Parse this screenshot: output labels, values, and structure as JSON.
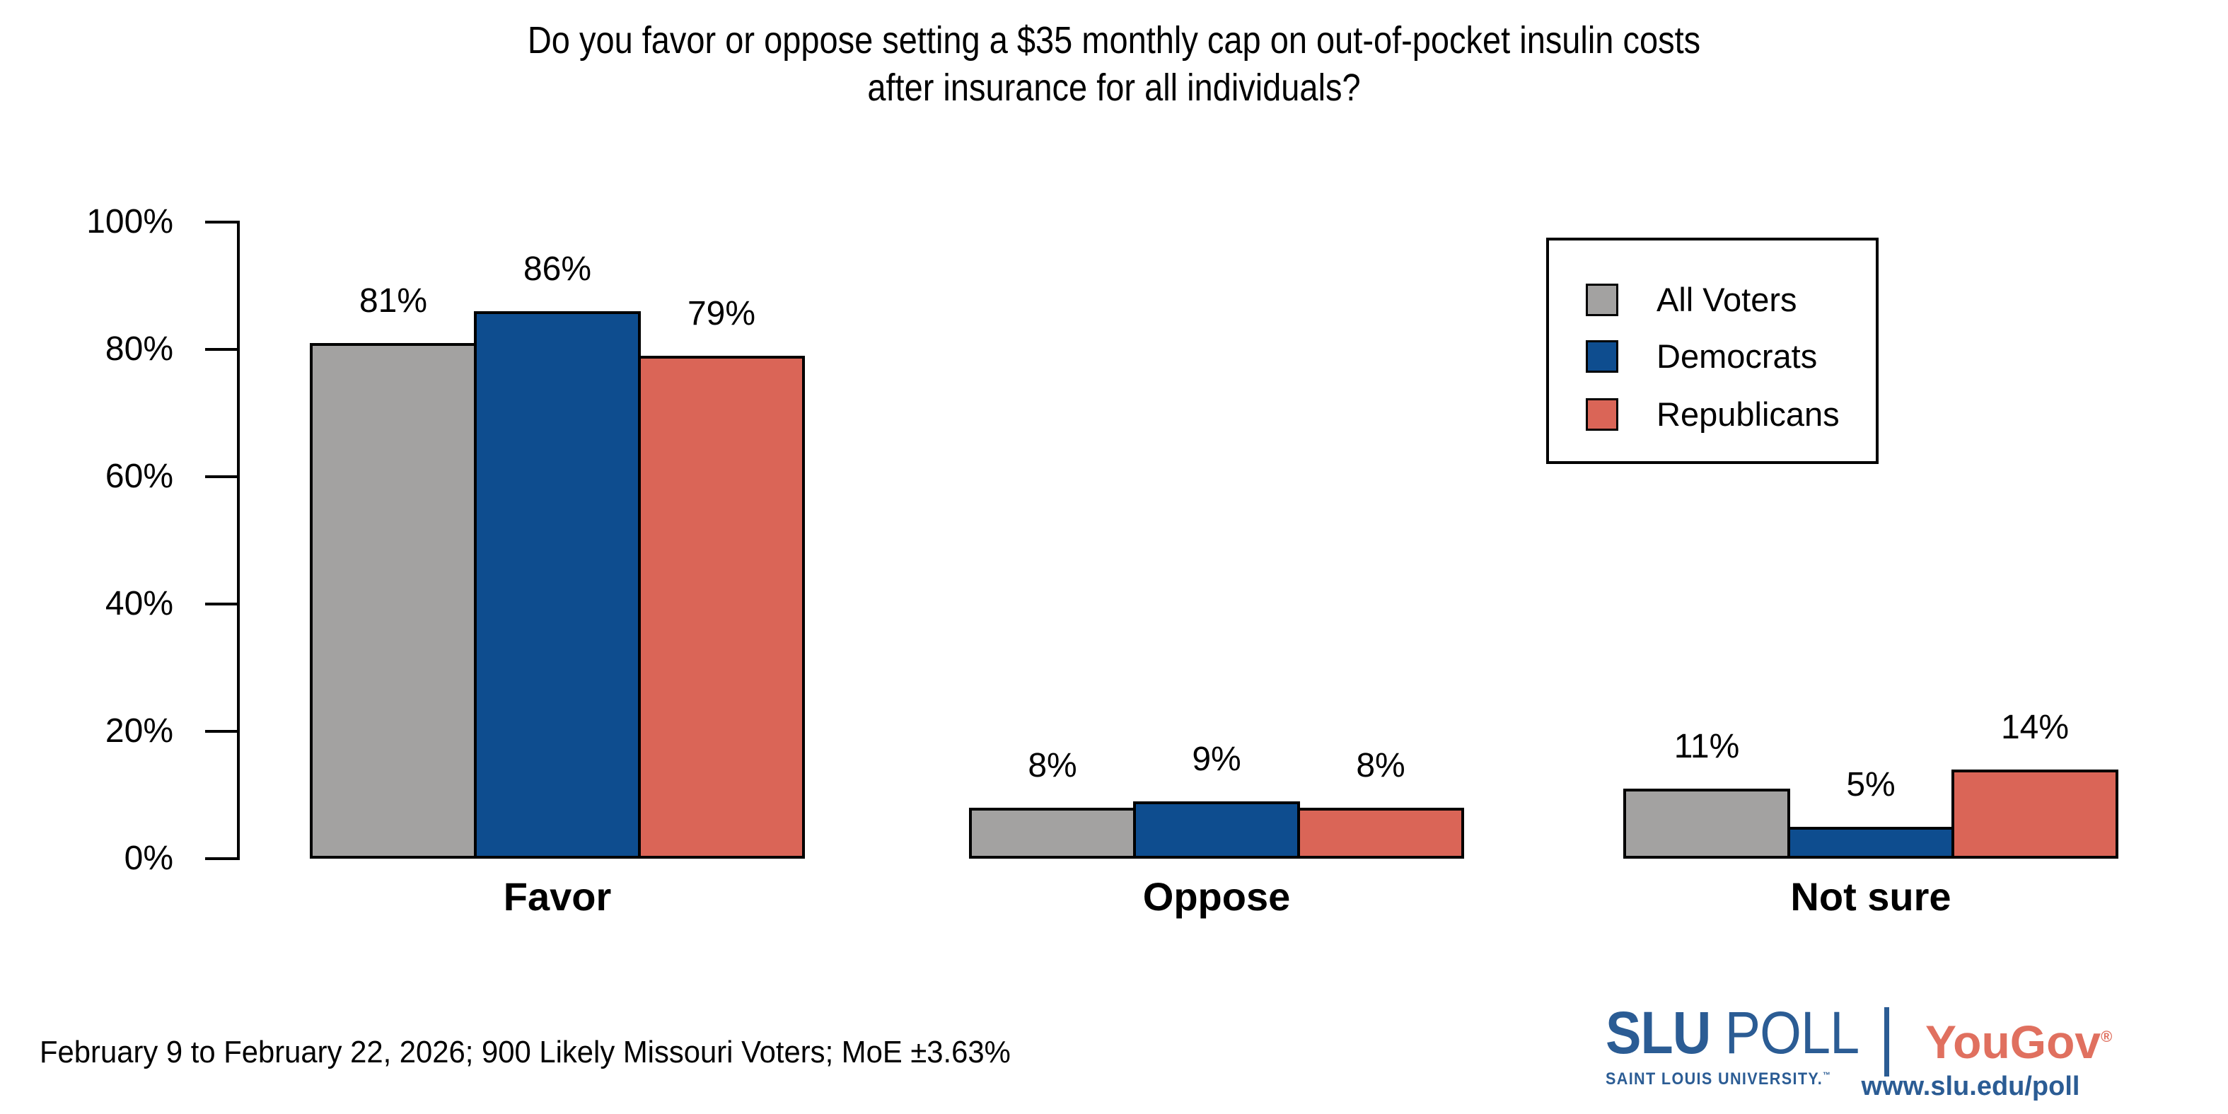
{
  "chart_data": {
    "type": "bar",
    "title": "Do you favor or oppose setting a $35 monthly cap on out-of-pocket insulin costs after insurance for all individuals?",
    "title_lines": [
      "Do you favor or oppose setting a $35 monthly cap on out-of-pocket insulin costs",
      "after insurance for all individuals?"
    ],
    "categories": [
      "Favor",
      "Oppose",
      "Not sure"
    ],
    "series": [
      {
        "name": "All Voters",
        "color": "#A3A2A1",
        "values": [
          81,
          8,
          11
        ]
      },
      {
        "name": "Democrats",
        "color": "#0E4D8F",
        "values": [
          86,
          9,
          5
        ]
      },
      {
        "name": "Republicans",
        "color": "#DA6557",
        "values": [
          79,
          8,
          14
        ]
      }
    ],
    "value_suffix": "%",
    "ylim": [
      0,
      100
    ],
    "yticks": [
      "0%",
      "20%",
      "40%",
      "60%",
      "80%",
      "100%"
    ],
    "grid": false,
    "legend_position": "upper right",
    "bar_border_color": "#000000",
    "axis_color": "#000000"
  },
  "footer": {
    "source": "February 9 to February 22, 2026; 900 Likely Missouri Voters; MoE ±3.63%"
  },
  "branding": {
    "slu": "SLU",
    "poll": "POLL",
    "slu_subtitle": "SAINT LOUIS UNIVERSITY.",
    "trademark": "™",
    "yougov": "YouGov",
    "registered": "®",
    "url": "www.slu.edu/poll",
    "slu_blue": "#2B5C94",
    "yougov_red": "#E0705F"
  }
}
